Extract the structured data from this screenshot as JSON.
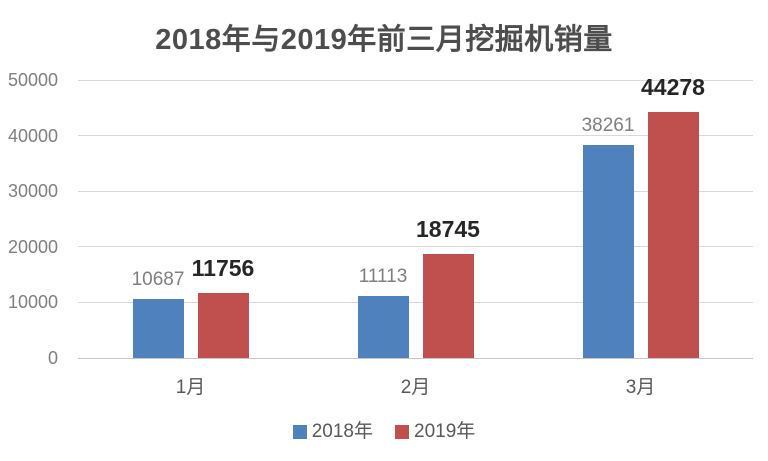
{
  "chart_data": {
    "type": "bar",
    "title": "2018年与2019年前三月挖掘机销量",
    "categories": [
      "1月",
      "2月",
      "3月"
    ],
    "series": [
      {
        "name": "2018年",
        "color": "#4F81BD",
        "values": [
          10687,
          11113,
          38261
        ],
        "label_style": "muted"
      },
      {
        "name": "2019年",
        "color": "#C0504D",
        "values": [
          11756,
          18745,
          44278
        ],
        "label_style": "emphasis"
      }
    ],
    "ylim": [
      0,
      50000
    ],
    "ytick_interval": 10000,
    "yticks": [
      "50000",
      "40000",
      "30000",
      "20000",
      "10000",
      "0"
    ],
    "xlabel": "",
    "ylabel": "",
    "grid": true,
    "legend_position": "bottom",
    "colors": {
      "title_text": "#4d4d4d",
      "axis_text": "#7f7f7f",
      "category_text": "#595959",
      "gridline": "#d9d9d9",
      "muted_label": "#7f7f7f",
      "emphasis_label": "#262626",
      "background": "#ffffff"
    }
  }
}
